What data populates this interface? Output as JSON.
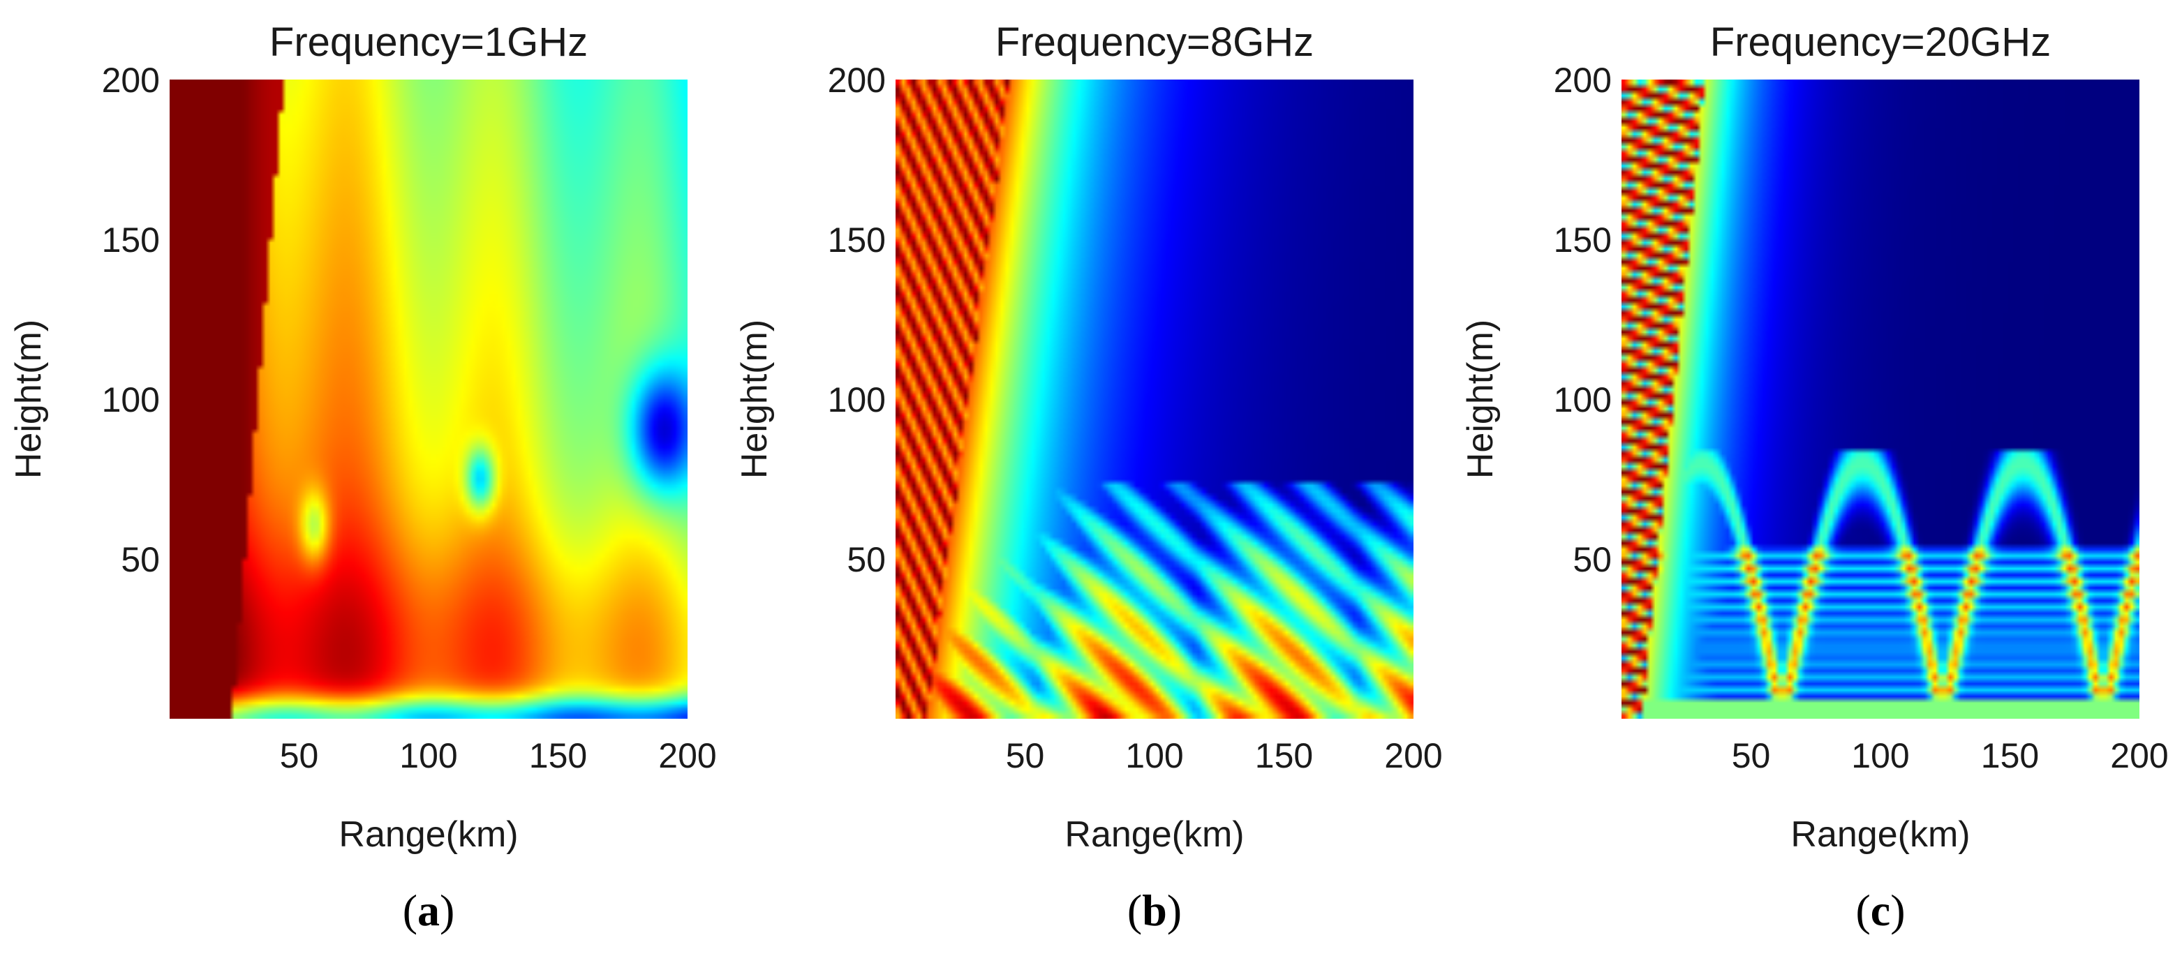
{
  "chart_data": [
    {
      "type": "heatmap",
      "title": "Frequency=1GHz",
      "xlabel": "Range(km)",
      "ylabel": "Height(m)",
      "xlim": [
        0,
        200
      ],
      "ylim": [
        0,
        200
      ],
      "xticks": [
        50,
        100,
        150,
        200
      ],
      "yticks": [
        50,
        100,
        150,
        200
      ],
      "caption_letter": "a",
      "colormap": "jet",
      "pattern": "low"
    },
    {
      "type": "heatmap",
      "title": "Frequency=8GHz",
      "xlabel": "Range(km)",
      "ylabel": "Height(m)",
      "xlim": [
        0,
        200
      ],
      "ylim": [
        0,
        200
      ],
      "xticks": [
        50,
        100,
        150,
        200
      ],
      "yticks": [
        50,
        100,
        150,
        200
      ],
      "caption_letter": "b",
      "colormap": "jet",
      "pattern": "mid"
    },
    {
      "type": "heatmap",
      "title": "Frequency=20GHz",
      "xlabel": "Range(km)",
      "ylabel": "Height(m)",
      "xlim": [
        0,
        200
      ],
      "ylim": [
        0,
        200
      ],
      "xticks": [
        50,
        100,
        150,
        200
      ],
      "yticks": [
        50,
        100,
        150,
        200
      ],
      "caption_letter": "c",
      "colormap": "jet",
      "pattern": "high"
    }
  ]
}
